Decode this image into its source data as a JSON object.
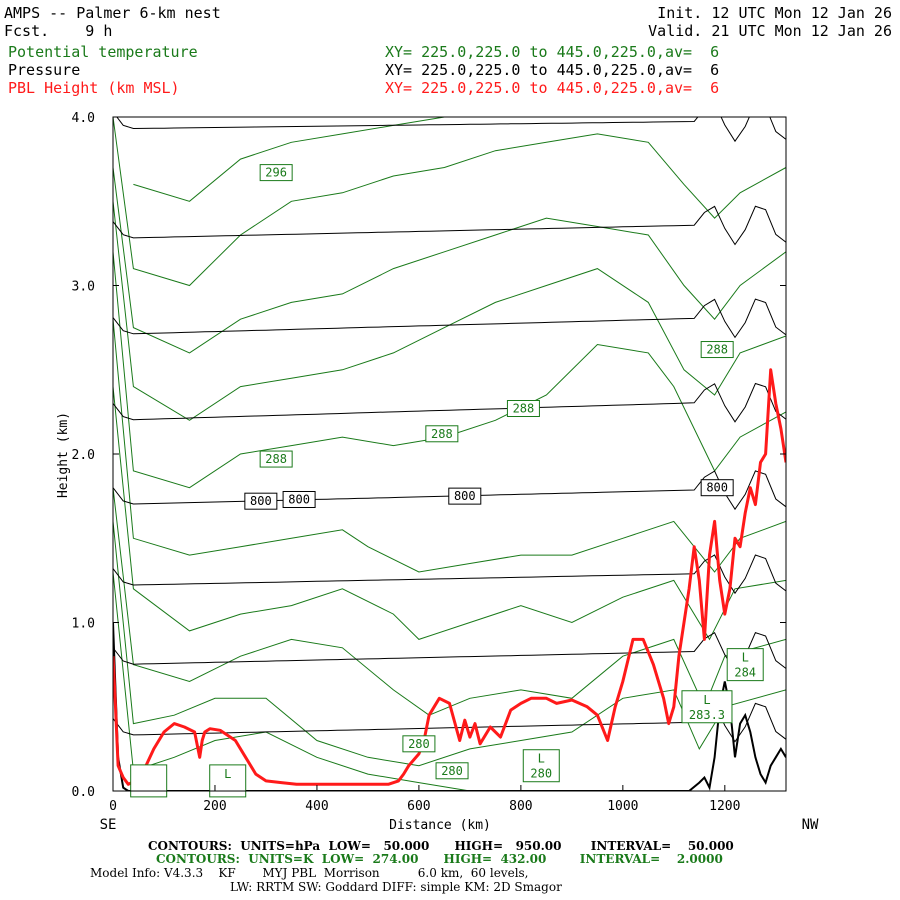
{
  "header": {
    "title": "AMPS -- Palmer 6-km nest",
    "fcst_label": "Fcst.",
    "fcst_value": "9 h",
    "init": "Init. 12 UTC Mon 12 Jan 26",
    "valid": "Valid. 21 UTC Mon 12 Jan 26",
    "fields": [
      {
        "name": "Potential temperature",
        "xy": "XY= 225.0,225.0 to 445.0,225.0,av=  6",
        "color": "#1a7a1a"
      },
      {
        "name": "Pressure",
        "xy": "XY= 225.0,225.0 to 445.0,225.0,av=  6",
        "color": "#000000"
      },
      {
        "name": "PBL Height (km MSL)",
        "xy": "XY= 225.0,225.0 to 445.0,225.0,av=  6",
        "color": "#ff1a1a"
      }
    ]
  },
  "footer": {
    "pressure_contours": "CONTOURS:  UNITS=hPa  LOW=   50.000      HIGH=   950.00       INTERVAL=    50.000",
    "theta_contours": "CONTOURS:  UNITS=K  LOW=  274.00      HIGH=  432.00        INTERVAL=    2.0000",
    "model_info_1": "Model Info: V4.3.3    KF       MYJ PBL  Morrison          6.0 km,  60 levels,",
    "model_info_2": "LW: RRTM SW: Goddard DIFF: simple KM: 2D Smagor"
  },
  "chart_data": {
    "type": "line",
    "xlabel": "Distance (km)",
    "ylabel": "Height (km)",
    "xlim": [
      0,
      1320
    ],
    "ylim": [
      0,
      4.0
    ],
    "x_ticks": [
      0,
      200,
      400,
      600,
      800,
      1000,
      1200
    ],
    "x_tick_labels": [
      "0",
      "200",
      "400",
      "600",
      "800",
      "1000",
      "1200"
    ],
    "y_ticks": [
      0,
      1.0,
      2.0,
      3.0,
      4.0
    ],
    "y_tick_labels": [
      "0.0",
      "1.0",
      "2.0",
      "3.0",
      "4.0"
    ],
    "left_end_label": "SE",
    "right_end_label": "NW",
    "pressure_levels_km": [
      0.37,
      0.75,
      1.2,
      1.7,
      2.2,
      2.7,
      3.3,
      3.95
    ],
    "pressure_lines": [
      {
        "y0": 0.33,
        "y1": 0.42
      },
      {
        "y0": 0.75,
        "y1": 0.84
      },
      {
        "y0": 1.22,
        "y1": 1.3
      },
      {
        "y0": 1.7,
        "y1": 1.8
      },
      {
        "y0": 2.2,
        "y1": 2.32
      },
      {
        "y0": 2.71,
        "y1": 2.82
      },
      {
        "y0": 3.28,
        "y1": 3.37
      },
      {
        "y0": 3.93,
        "y1": 3.98
      }
    ],
    "pressure_labels": [
      {
        "text": "800",
        "x": 290,
        "y": 1.72
      },
      {
        "text": "800",
        "x": 365,
        "y": 1.73
      },
      {
        "text": "800",
        "x": 690,
        "y": 1.75
      },
      {
        "text": "800",
        "x": 1185,
        "y": 1.8
      }
    ],
    "theta_lines": [
      [
        [
          0,
          1.3
        ],
        [
          40,
          0.12
        ],
        [
          120,
          0.2
        ],
        [
          200,
          0.3
        ],
        [
          300,
          0.35
        ],
        [
          400,
          0.2
        ],
        [
          500,
          0.1
        ],
        [
          600,
          0.05
        ],
        [
          700,
          0.0
        ]
      ],
      [
        [
          0,
          1.6
        ],
        [
          40,
          0.4
        ],
        [
          120,
          0.45
        ],
        [
          200,
          0.55
        ],
        [
          300,
          0.55
        ],
        [
          400,
          0.3
        ],
        [
          500,
          0.2
        ],
        [
          600,
          0.15
        ],
        [
          700,
          0.25
        ],
        [
          800,
          0.3
        ],
        [
          900,
          0.35
        ],
        [
          1000,
          0.55
        ],
        [
          1100,
          0.6
        ],
        [
          1150,
          0.25
        ],
        [
          1200,
          0.5
        ],
        [
          1320,
          0.6
        ]
      ],
      [
        [
          0,
          1.8
        ],
        [
          40,
          0.75
        ],
        [
          150,
          0.65
        ],
        [
          250,
          0.8
        ],
        [
          350,
          0.9
        ],
        [
          450,
          0.85
        ],
        [
          550,
          0.6
        ],
        [
          620,
          0.45
        ],
        [
          700,
          0.55
        ],
        [
          800,
          0.6
        ],
        [
          900,
          0.55
        ],
        [
          1000,
          0.8
        ],
        [
          1100,
          0.9
        ],
        [
          1160,
          0.5
        ],
        [
          1200,
          0.8
        ],
        [
          1320,
          0.9
        ]
      ],
      [
        [
          0,
          2.4
        ],
        [
          40,
          1.2
        ],
        [
          150,
          0.95
        ],
        [
          250,
          1.05
        ],
        [
          350,
          1.1
        ],
        [
          450,
          1.2
        ],
        [
          550,
          1.05
        ],
        [
          600,
          0.9
        ],
        [
          700,
          1.0
        ],
        [
          800,
          1.1
        ],
        [
          900,
          1.0
        ],
        [
          1000,
          1.15
        ],
        [
          1100,
          1.25
        ],
        [
          1170,
          0.9
        ],
        [
          1220,
          1.2
        ],
        [
          1320,
          1.25
        ]
      ],
      [
        [
          0,
          2.8
        ],
        [
          40,
          1.5
        ],
        [
          150,
          1.4
        ],
        [
          250,
          1.45
        ],
        [
          350,
          1.5
        ],
        [
          450,
          1.55
        ],
        [
          500,
          1.45
        ],
        [
          600,
          1.3
        ],
        [
          700,
          1.35
        ],
        [
          800,
          1.4
        ],
        [
          900,
          1.4
        ],
        [
          1000,
          1.5
        ],
        [
          1100,
          1.6
        ],
        [
          1180,
          1.3
        ],
        [
          1230,
          1.5
        ],
        [
          1320,
          1.6
        ]
      ],
      [
        [
          0,
          3.2
        ],
        [
          40,
          1.9
        ],
        [
          150,
          1.8
        ],
        [
          250,
          2.0
        ],
        [
          350,
          2.05
        ],
        [
          450,
          2.1
        ],
        [
          550,
          2.05
        ],
        [
          650,
          2.1
        ],
        [
          750,
          2.2
        ],
        [
          850,
          2.35
        ],
        [
          950,
          2.65
        ],
        [
          1050,
          2.6
        ],
        [
          1100,
          2.4
        ],
        [
          1180,
          1.9
        ],
        [
          1230,
          2.1
        ],
        [
          1320,
          2.25
        ]
      ],
      [
        [
          0,
          3.5
        ],
        [
          40,
          2.4
        ],
        [
          150,
          2.2
        ],
        [
          250,
          2.4
        ],
        [
          350,
          2.45
        ],
        [
          450,
          2.5
        ],
        [
          550,
          2.6
        ],
        [
          650,
          2.75
        ],
        [
          750,
          2.9
        ],
        [
          850,
          3.0
        ],
        [
          950,
          3.1
        ],
        [
          1050,
          2.9
        ],
        [
          1120,
          2.5
        ],
        [
          1180,
          2.35
        ],
        [
          1230,
          2.6
        ],
        [
          1320,
          2.7
        ]
      ],
      [
        [
          0,
          3.7
        ],
        [
          40,
          2.75
        ],
        [
          150,
          2.6
        ],
        [
          250,
          2.8
        ],
        [
          350,
          2.9
        ],
        [
          450,
          2.95
        ],
        [
          550,
          3.1
        ],
        [
          650,
          3.2
        ],
        [
          750,
          3.3
        ],
        [
          850,
          3.4
        ],
        [
          950,
          3.35
        ],
        [
          1050,
          3.3
        ],
        [
          1120,
          3.0
        ],
        [
          1180,
          2.8
        ],
        [
          1230,
          3.0
        ],
        [
          1320,
          3.2
        ]
      ],
      [
        [
          0,
          4.0
        ],
        [
          40,
          3.1
        ],
        [
          150,
          3.0
        ],
        [
          250,
          3.3
        ],
        [
          350,
          3.5
        ],
        [
          450,
          3.55
        ],
        [
          550,
          3.65
        ],
        [
          650,
          3.7
        ],
        [
          750,
          3.8
        ],
        [
          850,
          3.85
        ],
        [
          950,
          3.9
        ],
        [
          1050,
          3.85
        ],
        [
          1120,
          3.6
        ],
        [
          1180,
          3.4
        ],
        [
          1230,
          3.55
        ],
        [
          1320,
          3.7
        ]
      ],
      [
        [
          40,
          3.6
        ],
        [
          150,
          3.5
        ],
        [
          250,
          3.75
        ],
        [
          350,
          3.85
        ],
        [
          450,
          3.9
        ],
        [
          550,
          3.95
        ],
        [
          650,
          4.0
        ]
      ]
    ],
    "theta_labels": [
      {
        "text": "296",
        "x": 320,
        "y": 3.67
      },
      {
        "text": "288",
        "x": 1185,
        "y": 2.62
      },
      {
        "text": "288",
        "x": 805,
        "y": 2.27
      },
      {
        "text": "288",
        "x": 645,
        "y": 2.12
      },
      {
        "text": "288",
        "x": 320,
        "y": 1.97
      },
      {
        "text": "280",
        "x": 600,
        "y": 0.28
      },
      {
        "text": "280",
        "x": 665,
        "y": 0.12
      }
    ],
    "low_markers": [
      {
        "letter": "L",
        "value": "280",
        "x": 840,
        "y": 0.15
      },
      {
        "letter": "L",
        "value": "283.3",
        "x": 1165,
        "y": 0.5
      },
      {
        "letter": "L",
        "value": "284",
        "x": 1240,
        "y": 0.75
      },
      {
        "letter": "L",
        "value": "",
        "x": 225,
        "y": 0.06
      },
      {
        "letter": "",
        "value": "",
        "x": 70,
        "y": 0.06
      }
    ],
    "series": [
      {
        "name": "PBL Height (km MSL)",
        "color": "#ff1a1a",
        "x": [
          0,
          5,
          10,
          20,
          30,
          45,
          60,
          80,
          100,
          120,
          140,
          160,
          170,
          175,
          180,
          190,
          210,
          240,
          260,
          280,
          290,
          300,
          330,
          360,
          400,
          450,
          500,
          540,
          560,
          570,
          580,
          600,
          610,
          620,
          640,
          660,
          680,
          690,
          700,
          710,
          720,
          740,
          760,
          780,
          800,
          820,
          850,
          870,
          900,
          930,
          950,
          970,
          985,
          1000,
          1020,
          1040,
          1060,
          1080,
          1090,
          1100,
          1110,
          1120,
          1130,
          1140,
          1150,
          1160,
          1170,
          1180,
          1190,
          1200,
          1210,
          1220,
          1230,
          1240,
          1250,
          1260,
          1270,
          1280,
          1290,
          1300,
          1310,
          1320
        ],
        "y": [
          0.8,
          0.5,
          0.15,
          0.08,
          0.04,
          0.06,
          0.12,
          0.25,
          0.35,
          0.4,
          0.38,
          0.35,
          0.2,
          0.3,
          0.35,
          0.37,
          0.36,
          0.3,
          0.2,
          0.1,
          0.08,
          0.06,
          0.05,
          0.04,
          0.04,
          0.04,
          0.04,
          0.04,
          0.06,
          0.1,
          0.15,
          0.22,
          0.3,
          0.45,
          0.55,
          0.52,
          0.3,
          0.42,
          0.32,
          0.4,
          0.28,
          0.38,
          0.32,
          0.48,
          0.52,
          0.55,
          0.55,
          0.52,
          0.54,
          0.5,
          0.45,
          0.3,
          0.5,
          0.65,
          0.9,
          0.9,
          0.75,
          0.55,
          0.4,
          0.5,
          0.8,
          1.0,
          1.2,
          1.45,
          1.25,
          0.9,
          1.4,
          1.6,
          1.25,
          1.05,
          1.2,
          1.5,
          1.45,
          1.65,
          1.8,
          1.7,
          1.95,
          2.0,
          2.5,
          2.3,
          2.15,
          1.95
        ]
      }
    ],
    "terrain_line": {
      "color": "#000000",
      "x": [
        0,
        5,
        10,
        20,
        30,
        1100,
        1130,
        1150,
        1160,
        1170,
        1180,
        1190,
        1200,
        1210,
        1220,
        1230,
        1240,
        1250,
        1260,
        1270,
        1280,
        1290,
        1300,
        1310,
        1320
      ],
      "y": [
        1.0,
        0.6,
        0.2,
        0.02,
        0.0,
        0.0,
        0.0,
        0.05,
        0.08,
        0.02,
        0.2,
        0.5,
        0.65,
        0.5,
        0.2,
        0.4,
        0.45,
        0.35,
        0.2,
        0.1,
        0.05,
        0.15,
        0.2,
        0.25,
        0.2
      ]
    }
  }
}
